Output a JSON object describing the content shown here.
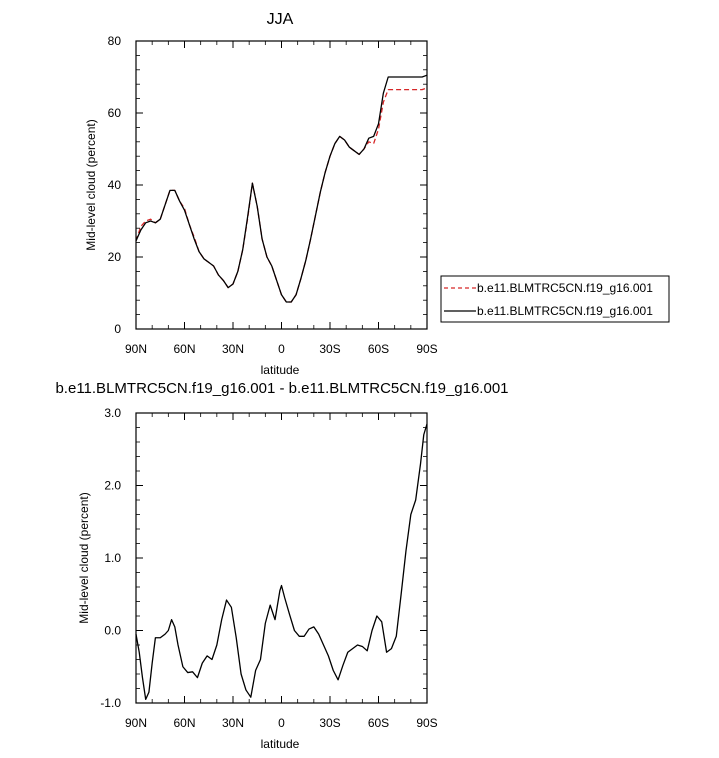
{
  "chart_data": [
    {
      "type": "line",
      "title": "JJA",
      "xlabel": "latitude",
      "ylabel": "Mid-level cloud (percent)",
      "xlim": [
        -90,
        90
      ],
      "ylim": [
        0,
        80
      ],
      "xticks": [
        {
          "value": -90,
          "label": "90N"
        },
        {
          "value": -60,
          "label": "60N"
        },
        {
          "value": -30,
          "label": "30N"
        },
        {
          "value": 0,
          "label": "0"
        },
        {
          "value": 30,
          "label": "30S"
        },
        {
          "value": 60,
          "label": "60S"
        },
        {
          "value": 90,
          "label": "90S"
        }
      ],
      "yticks": [
        {
          "value": 0,
          "label": "0"
        },
        {
          "value": 20,
          "label": "20"
        },
        {
          "value": 40,
          "label": "40"
        },
        {
          "value": 60,
          "label": "60"
        },
        {
          "value": 80,
          "label": "80"
        }
      ],
      "grid": false,
      "legend_position": "right",
      "x": [
        -90,
        -87,
        -84,
        -81,
        -78,
        -75,
        -72,
        -69,
        -66,
        -63,
        -60,
        -57,
        -54,
        -51,
        -48,
        -45,
        -42,
        -39,
        -36,
        -33,
        -30,
        -27,
        -24,
        -21,
        -18,
        -15,
        -12,
        -9,
        -6,
        -3,
        0,
        3,
        6,
        9,
        12,
        15,
        18,
        21,
        24,
        27,
        30,
        33,
        36,
        39,
        42,
        45,
        48,
        51,
        54,
        57,
        60,
        63,
        66,
        69,
        72,
        75,
        78,
        81,
        84,
        87,
        90
      ],
      "series": [
        {
          "name": "b.e11.BLMTRC5CN.f19_g16.001",
          "color": "#d62728",
          "dash": "dashed",
          "values": [
            24.5,
            28.5,
            30,
            30.5,
            29.5,
            30.5,
            34.5,
            38.5,
            38.5,
            35.5,
            33.5,
            29,
            25.5,
            21.5,
            19.5,
            18.5,
            17.5,
            15,
            13.5,
            11.5,
            12.5,
            16,
            22,
            30.5,
            40.5,
            34,
            25,
            20,
            17.5,
            13.5,
            9.5,
            7.5,
            7.5,
            9.5,
            14,
            19,
            25,
            31.5,
            38,
            43.5,
            48,
            51.5,
            53.5,
            52.5,
            50.5,
            49.5,
            48.5,
            50,
            52,
            51.5,
            55.5,
            63,
            66.5,
            66.5,
            66.5,
            66.5,
            66.5,
            66.5,
            66.5,
            66.5,
            67
          ]
        },
        {
          "name": "b.e11.BLMTRC5CN.f19_g16.001",
          "color": "#000000",
          "dash": "solid",
          "values": [
            24.5,
            27.5,
            29.5,
            30,
            29.5,
            30.5,
            34.5,
            38.5,
            38.5,
            35.5,
            33,
            29,
            25,
            21.5,
            19.5,
            18.5,
            17.5,
            15,
            13.5,
            11.5,
            12.5,
            16,
            22,
            31,
            40.5,
            34,
            25,
            20,
            17.5,
            13.5,
            9.5,
            7.5,
            7.5,
            9.5,
            14,
            19,
            25,
            31.5,
            38,
            43.5,
            48,
            51.5,
            53.5,
            52.5,
            50.5,
            49.5,
            48.5,
            50,
            53,
            53.5,
            57,
            65.5,
            70,
            70,
            70,
            70,
            70,
            70,
            70,
            70,
            70.5
          ]
        }
      ]
    },
    {
      "type": "line",
      "title": "b.e11.BLMTRC5CN.f19_g16.001 - b.e11.BLMTRC5CN.f19_g16.001",
      "xlabel": "latitude",
      "ylabel": "Mid-level cloud (percent)",
      "xlim": [
        -90,
        90
      ],
      "ylim": [
        -1.0,
        3.0
      ],
      "xticks": [
        {
          "value": -90,
          "label": "90N"
        },
        {
          "value": -60,
          "label": "60N"
        },
        {
          "value": -30,
          "label": "30N"
        },
        {
          "value": 0,
          "label": "0"
        },
        {
          "value": 30,
          "label": "30S"
        },
        {
          "value": 60,
          "label": "60S"
        },
        {
          "value": 90,
          "label": "90S"
        }
      ],
      "yticks": [
        {
          "value": -1.0,
          "label": "-1.0"
        },
        {
          "value": 0.0,
          "label": "0.0"
        },
        {
          "value": 1.0,
          "label": "1.0"
        },
        {
          "value": 2.0,
          "label": "2.0"
        },
        {
          "value": 3.0,
          "label": "3.0"
        }
      ],
      "grid": false,
      "series": [
        {
          "color": "#000000",
          "dash": "solid",
          "x": [
            -90,
            -88,
            -86,
            -84,
            -82,
            -80,
            -78,
            -75,
            -72,
            -70,
            -68,
            -66,
            -64,
            -61,
            -58,
            -55,
            -52,
            -49,
            -46,
            -43,
            -40,
            -37,
            -34,
            -31,
            -28,
            -25,
            -22,
            -19,
            -16,
            -13,
            -10,
            -7,
            -4,
            -1,
            0,
            2,
            5,
            8,
            11,
            14,
            17,
            20,
            23,
            26,
            29,
            32,
            35,
            38,
            41,
            44,
            47,
            50,
            53,
            56,
            59,
            62,
            65,
            68,
            71,
            74,
            77,
            80,
            83,
            86,
            88,
            90
          ],
          "values": [
            -0.05,
            -0.3,
            -0.65,
            -0.95,
            -0.85,
            -0.45,
            -0.1,
            -0.1,
            -0.05,
            0.0,
            0.15,
            0.05,
            -0.2,
            -0.5,
            -0.58,
            -0.57,
            -0.65,
            -0.45,
            -0.35,
            -0.4,
            -0.2,
            0.15,
            0.42,
            0.32,
            -0.1,
            -0.6,
            -0.82,
            -0.92,
            -0.55,
            -0.4,
            0.1,
            0.35,
            0.15,
            0.55,
            0.62,
            0.45,
            0.22,
            0.0,
            -0.08,
            -0.08,
            0.02,
            0.05,
            -0.05,
            -0.2,
            -0.35,
            -0.55,
            -0.68,
            -0.48,
            -0.3,
            -0.25,
            -0.2,
            -0.22,
            -0.28,
            0.0,
            0.2,
            0.12,
            -0.3,
            -0.25,
            -0.08,
            0.5,
            1.1,
            1.6,
            1.8,
            2.3,
            2.7,
            2.85
          ]
        }
      ]
    }
  ]
}
